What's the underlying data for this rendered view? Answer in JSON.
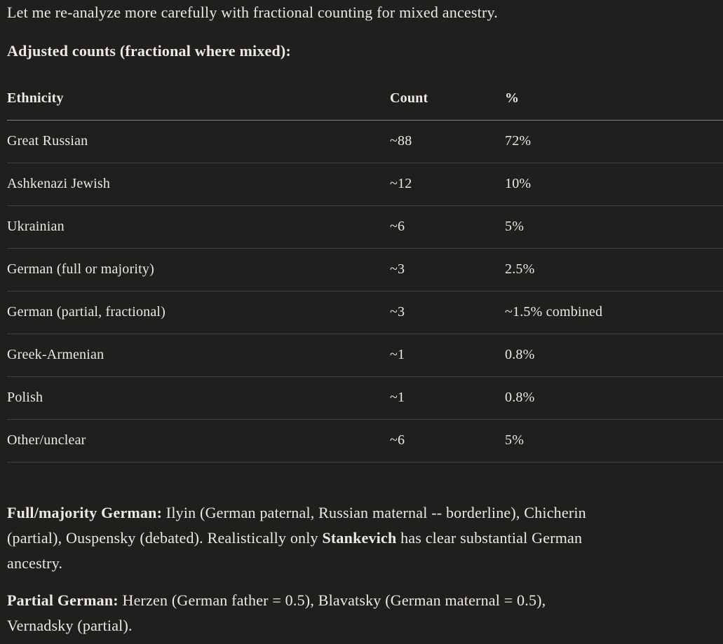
{
  "colors": {
    "background": "#201f1d",
    "text": "#eceae2",
    "header_border": "#85837b",
    "row_border": "#413f3b"
  },
  "intro": "Let me re-analyze more carefully with fractional counting for mixed ancestry.",
  "heading": "Adjusted counts (fractional where mixed):",
  "table": {
    "columns": [
      "Ethnicity",
      "Count",
      "%"
    ],
    "rows": [
      {
        "ethnicity": "Great Russian",
        "count": "~88",
        "percent": "72%"
      },
      {
        "ethnicity": "Ashkenazi Jewish",
        "count": "~12",
        "percent": "10%"
      },
      {
        "ethnicity": "Ukrainian",
        "count": "~6",
        "percent": "5%"
      },
      {
        "ethnicity": "German (full or majority)",
        "count": "~3",
        "percent": "2.5%"
      },
      {
        "ethnicity": "German (partial, fractional)",
        "count": "~3",
        "percent": "~1.5% combined"
      },
      {
        "ethnicity": "Greek-Armenian",
        "count": "~1",
        "percent": "0.8%"
      },
      {
        "ethnicity": "Polish",
        "count": "~1",
        "percent": "0.8%"
      },
      {
        "ethnicity": "Other/unclear",
        "count": "~6",
        "percent": "5%"
      }
    ]
  },
  "paragraphs": {
    "full_majority": {
      "line1_bold": "Full/majority German:",
      "line1_rest": " Ilyin (German paternal, Russian maternal -- borderline), Chicherin",
      "line2_start": "(partial), Ouspensky (debated). Realistically only ",
      "line2_bold": "Stankevich",
      "line2_rest": " has clear substantial German",
      "line3": "ancestry."
    },
    "partial": {
      "line1_bold": "Partial German:",
      "line1_rest": " Herzen (German father = 0.5), Blavatsky (German maternal = 0.5),",
      "line2": "Vernadsky (partial)."
    }
  }
}
